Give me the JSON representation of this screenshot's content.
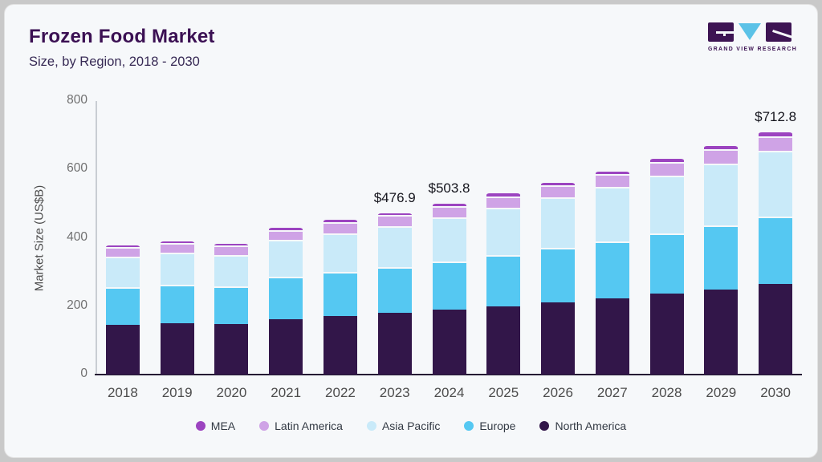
{
  "header": {
    "title": "Frozen Food Market",
    "subtitle": "Size, by Region, 2018 - 2030"
  },
  "logo": {
    "text": "GRAND VIEW RESEARCH"
  },
  "colors": {
    "card_background": "#f6f8fa",
    "title_text": "#3b1053",
    "logo_purple": "#3d1453",
    "logo_blue": "#5bc2e7",
    "axis_line": "#241a33"
  },
  "chart_data": {
    "type": "bar",
    "stacked": true,
    "title": "Frozen Food Market Size, by Region, 2018 - 2030",
    "xlabel": "",
    "ylabel": "Market Size (US$B)",
    "ylim": [
      0,
      800
    ],
    "yticks": [
      0,
      200,
      400,
      600,
      800
    ],
    "grid": false,
    "legend_position": "bottom",
    "categories": [
      "2018",
      "2019",
      "2020",
      "2021",
      "2022",
      "2023",
      "2024",
      "2025",
      "2026",
      "2027",
      "2028",
      "2029",
      "2030"
    ],
    "series": [
      {
        "name": "North America",
        "color": "#321649",
        "values": [
          146,
          150,
          147,
          163,
          172,
          179.9,
          190,
          200,
          211,
          223,
          236,
          249.5,
          264
        ]
      },
      {
        "name": "Europe",
        "color": "#55c8f2",
        "values": [
          110,
          113,
          111,
          124,
          129,
          134,
          141.8,
          150,
          158.6,
          167.3,
          177,
          187.3,
          198.8
        ]
      },
      {
        "name": "Asia Pacific",
        "color": "#c9eaf9",
        "values": [
          89,
          93,
          91,
          108,
          112,
          119,
          128,
          137.8,
          148,
          158,
          169,
          181,
          192
        ]
      },
      {
        "name": "Latin America",
        "color": "#cfa3e6",
        "values": [
          28,
          28,
          28,
          28,
          33,
          33,
          33,
          34,
          36,
          38,
          39.5,
          41,
          43
        ]
      },
      {
        "name": "MEA",
        "color": "#9c44c0",
        "values": [
          10,
          10,
          10,
          11,
          11,
          11,
          11,
          12,
          12,
          13,
          13.5,
          14,
          15
        ]
      }
    ],
    "totals_annotated": [
      {
        "category": "2023",
        "label": "$476.9",
        "value": 476.9
      },
      {
        "category": "2024",
        "label": "$503.8",
        "value": 503.8
      },
      {
        "category": "2030",
        "label": "$712.8",
        "value": 712.8
      }
    ],
    "legend": [
      "MEA",
      "Latin America",
      "Asia Pacific",
      "Europe",
      "North America"
    ]
  }
}
